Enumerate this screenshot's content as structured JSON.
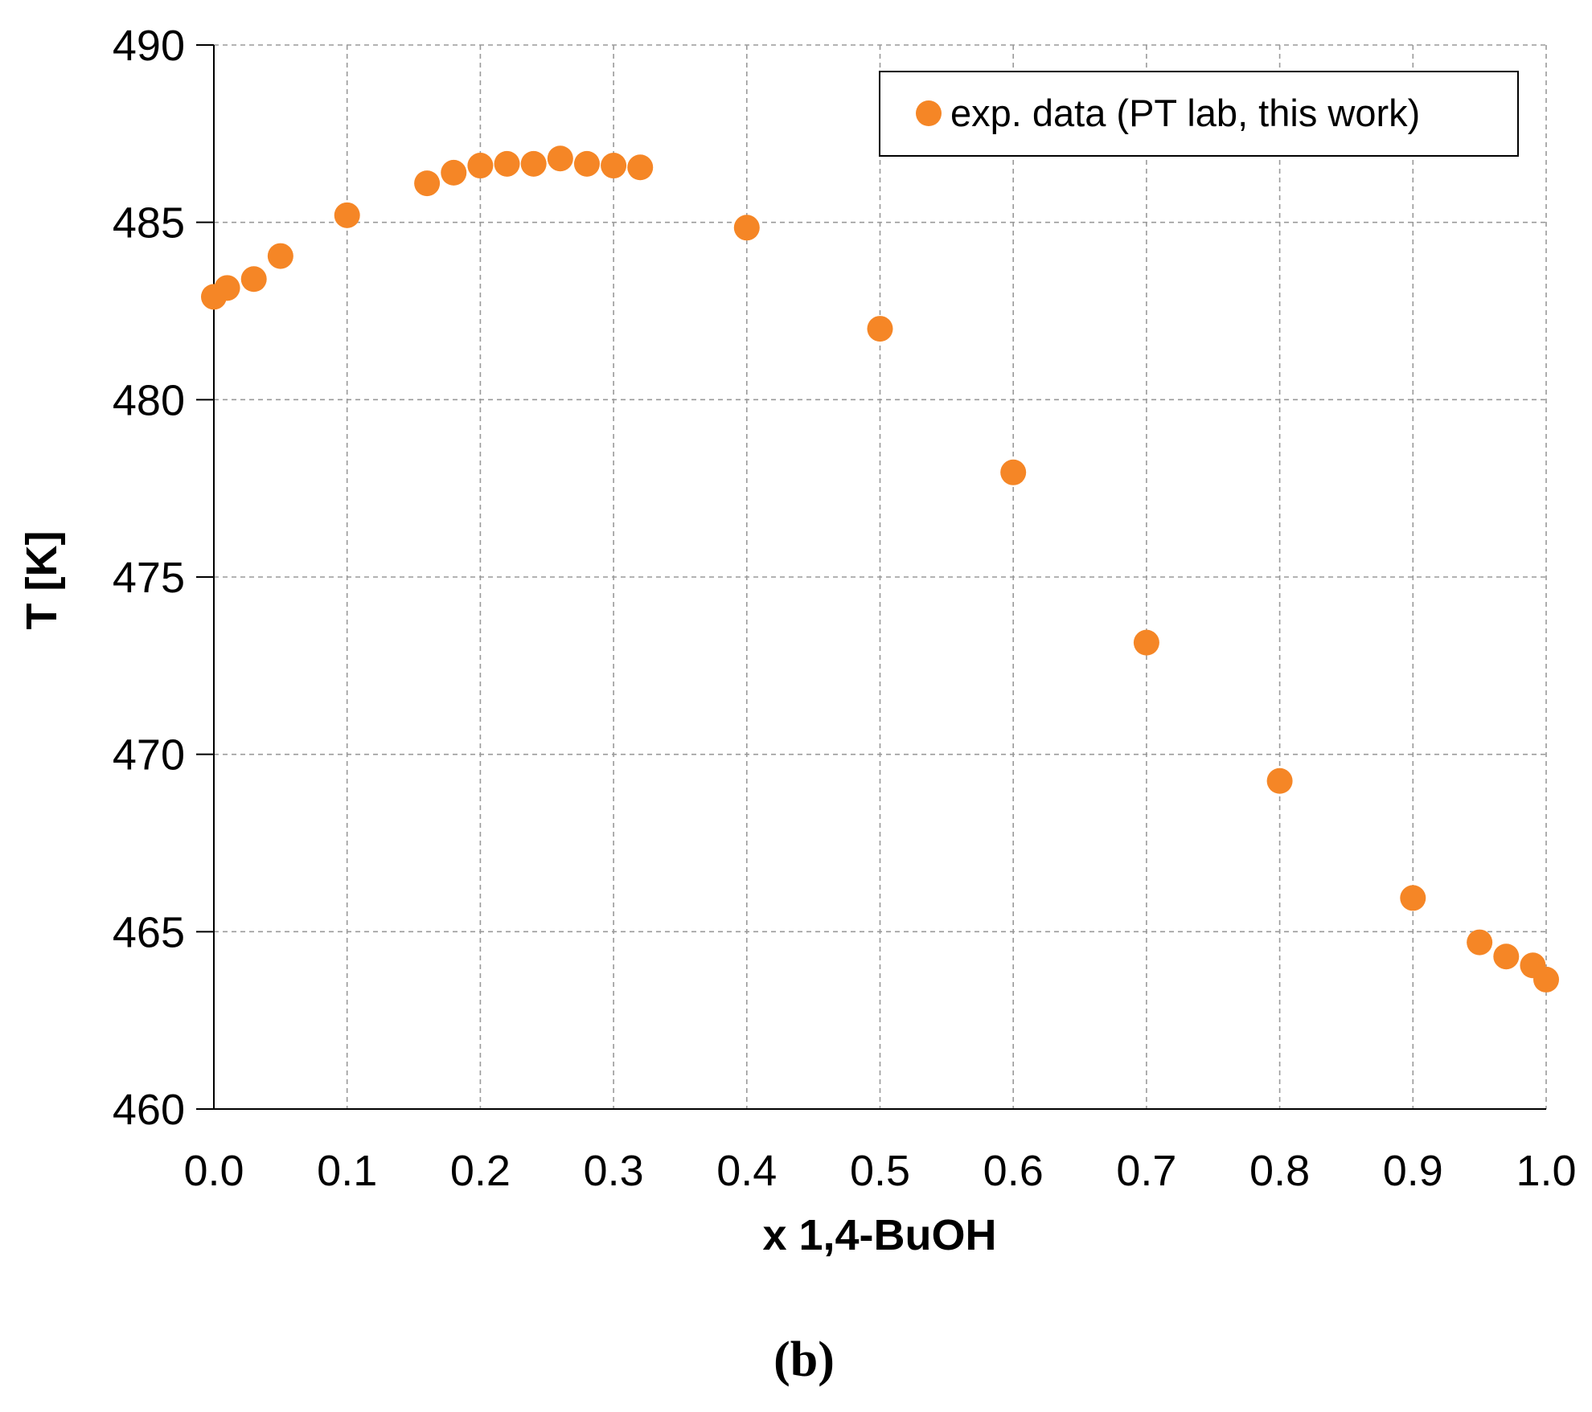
{
  "chart_data": {
    "type": "scatter",
    "title": "",
    "xlabel": "x 1,4-BuOH",
    "ylabel": "T [K]",
    "xlim": [
      0.0,
      1.0
    ],
    "ylim": [
      460,
      490
    ],
    "x_ticks": [
      "0.0",
      "0.1",
      "0.2",
      "0.3",
      "0.4",
      "0.5",
      "0.6",
      "0.7",
      "0.8",
      "0.9",
      "1.0"
    ],
    "y_ticks": [
      "460",
      "465",
      "470",
      "475",
      "480",
      "485",
      "490"
    ],
    "grid": true,
    "legend_position": "top-right",
    "panel_label": "(b)",
    "series": [
      {
        "name": "exp. data (PT lab, this work)",
        "color": "#f58626",
        "marker": "circle",
        "points": [
          {
            "x": 0.0,
            "y": 482.9
          },
          {
            "x": 0.01,
            "y": 483.15
          },
          {
            "x": 0.03,
            "y": 483.4
          },
          {
            "x": 0.05,
            "y": 484.05
          },
          {
            "x": 0.1,
            "y": 485.2
          },
          {
            "x": 0.16,
            "y": 486.1
          },
          {
            "x": 0.18,
            "y": 486.4
          },
          {
            "x": 0.2,
            "y": 486.6
          },
          {
            "x": 0.22,
            "y": 486.65
          },
          {
            "x": 0.24,
            "y": 486.65
          },
          {
            "x": 0.26,
            "y": 486.8
          },
          {
            "x": 0.28,
            "y": 486.65
          },
          {
            "x": 0.3,
            "y": 486.6
          },
          {
            "x": 0.32,
            "y": 486.55
          },
          {
            "x": 0.4,
            "y": 484.85
          },
          {
            "x": 0.5,
            "y": 482.0
          },
          {
            "x": 0.6,
            "y": 477.95
          },
          {
            "x": 0.7,
            "y": 473.15
          },
          {
            "x": 0.8,
            "y": 469.25
          },
          {
            "x": 0.9,
            "y": 465.95
          },
          {
            "x": 0.95,
            "y": 464.7
          },
          {
            "x": 0.97,
            "y": 464.3
          },
          {
            "x": 0.99,
            "y": 464.05
          },
          {
            "x": 1.0,
            "y": 463.65
          }
        ]
      }
    ]
  }
}
